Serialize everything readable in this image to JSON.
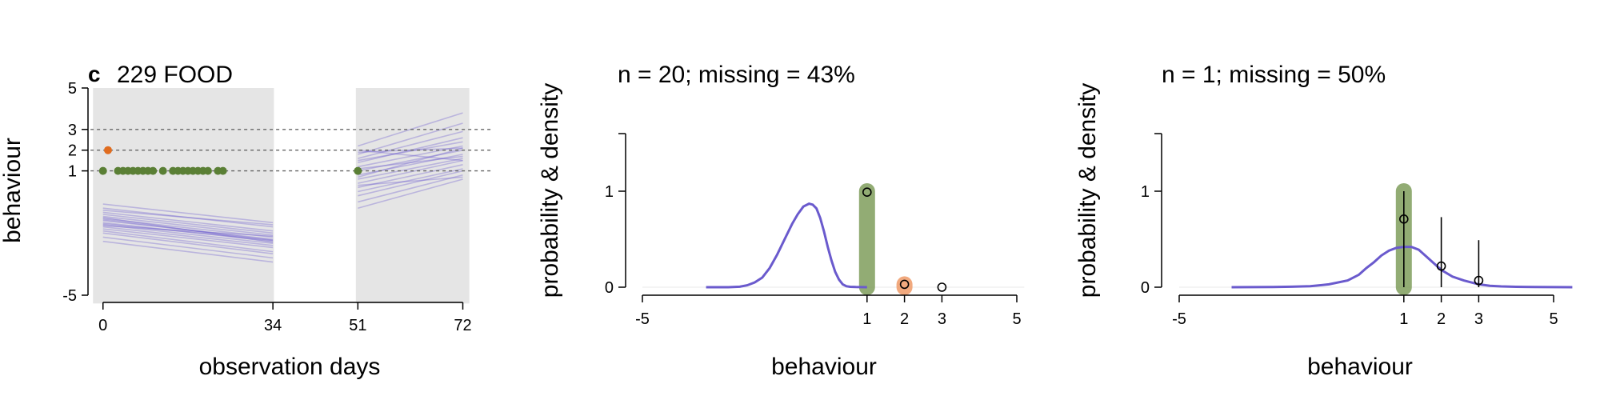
{
  "chart_data": [
    {
      "type": "line",
      "panel_letter": "c",
      "title": "229 FOOD",
      "xlabel": "observation days",
      "ylabel": "behaviour",
      "xlim": [
        -3,
        78
      ],
      "ylim": [
        -5,
        5
      ],
      "x_ticks": [
        0,
        34,
        51,
        72
      ],
      "y_ticks": [
        -5,
        1,
        2,
        3,
        5
      ],
      "reference_lines_y": [
        1,
        2,
        3
      ],
      "observed_periods": [
        [
          -2,
          34
        ],
        [
          51,
          72
        ]
      ],
      "observations": [
        {
          "day": 1,
          "value": 2,
          "color": "#e06c1f"
        },
        {
          "day": 0,
          "value": 1,
          "color": "#5a7f35"
        },
        {
          "day": 3,
          "value": 1,
          "color": "#5a7f35"
        },
        {
          "day": 4,
          "value": 1,
          "color": "#5a7f35"
        },
        {
          "day": 5,
          "value": 1,
          "color": "#5a7f35"
        },
        {
          "day": 6,
          "value": 1,
          "color": "#5a7f35"
        },
        {
          "day": 7,
          "value": 1,
          "color": "#5a7f35"
        },
        {
          "day": 8,
          "value": 1,
          "color": "#5a7f35"
        },
        {
          "day": 9,
          "value": 1,
          "color": "#5a7f35"
        },
        {
          "day": 10,
          "value": 1,
          "color": "#5a7f35"
        },
        {
          "day": 12,
          "value": 1,
          "color": "#5a7f35"
        },
        {
          "day": 14,
          "value": 1,
          "color": "#5a7f35"
        },
        {
          "day": 15,
          "value": 1,
          "color": "#5a7f35"
        },
        {
          "day": 16,
          "value": 1,
          "color": "#5a7f35"
        },
        {
          "day": 17,
          "value": 1,
          "color": "#5a7f35"
        },
        {
          "day": 18,
          "value": 1,
          "color": "#5a7f35"
        },
        {
          "day": 19,
          "value": 1,
          "color": "#5a7f35"
        },
        {
          "day": 20,
          "value": 1,
          "color": "#5a7f35"
        },
        {
          "day": 21,
          "value": 1,
          "color": "#5a7f35"
        },
        {
          "day": 23,
          "value": 1,
          "color": "#5a7f35"
        },
        {
          "day": 24,
          "value": 1,
          "color": "#5a7f35"
        },
        {
          "day": 51,
          "value": 1,
          "color": "#5a7f35"
        }
      ],
      "trajectory_color": "#6a5acd",
      "trajectories_period1": [
        [
          0,
          -0.6,
          34,
          -1.5
        ],
        [
          0,
          -0.8,
          34,
          -1.7
        ],
        [
          0,
          -1.0,
          34,
          -1.9
        ],
        [
          0,
          -1.1,
          34,
          -2.0
        ],
        [
          0,
          -1.2,
          34,
          -2.1
        ],
        [
          0,
          -1.3,
          34,
          -2.2
        ],
        [
          0,
          -1.4,
          34,
          -2.3
        ],
        [
          0,
          -1.5,
          34,
          -2.4
        ],
        [
          0,
          -1.6,
          34,
          -2.5
        ],
        [
          0,
          -1.7,
          34,
          -2.6
        ],
        [
          0,
          -1.8,
          34,
          -2.7
        ],
        [
          0,
          -1.9,
          34,
          -2.9
        ],
        [
          0,
          -2.0,
          34,
          -3.0
        ],
        [
          0,
          -2.2,
          34,
          -3.2
        ],
        [
          0,
          -2.4,
          34,
          -3.4
        ],
        [
          0,
          -0.9,
          34,
          -1.6
        ],
        [
          0,
          -1.35,
          34,
          -2.35
        ],
        [
          0,
          -1.55,
          34,
          -2.35
        ],
        [
          0,
          -1.25,
          34,
          -2.45
        ],
        [
          0,
          -1.65,
          34,
          -2.15
        ]
      ],
      "trajectories_period2": [
        [
          51,
          2.2,
          72,
          3.8
        ],
        [
          51,
          1.8,
          72,
          3.3
        ],
        [
          51,
          1.6,
          72,
          2.9
        ],
        [
          51,
          1.4,
          72,
          2.6
        ],
        [
          51,
          1.2,
          72,
          2.2
        ],
        [
          51,
          1.0,
          72,
          2.0
        ],
        [
          51,
          0.8,
          72,
          1.8
        ],
        [
          51,
          0.6,
          72,
          1.6
        ],
        [
          51,
          0.4,
          72,
          1.5
        ],
        [
          51,
          0.2,
          72,
          1.3
        ],
        [
          51,
          0.0,
          72,
          1.1
        ],
        [
          51,
          -0.2,
          72,
          1.0
        ],
        [
          51,
          -0.5,
          72,
          0.8
        ],
        [
          51,
          -0.8,
          72,
          0.6
        ],
        [
          51,
          1.5,
          72,
          2.4
        ],
        [
          51,
          1.1,
          72,
          1.7
        ],
        [
          51,
          0.7,
          72,
          2.1
        ],
        [
          51,
          1.9,
          72,
          2.1
        ],
        [
          51,
          0.3,
          72,
          0.7
        ],
        [
          51,
          2.0,
          72,
          1.5
        ]
      ]
    },
    {
      "type": "line",
      "title": "n = 20; missing = 43%",
      "xlabel": "behaviour",
      "ylabel": "probability & density",
      "xlim": [
        -5,
        5
      ],
      "ylim": [
        0,
        1.6
      ],
      "x_ticks": [
        -5,
        1,
        2,
        3,
        5
      ],
      "y_ticks": [
        0,
        1
      ],
      "density_color": "#6a5acd",
      "density_curve": {
        "x": [
          -3.3,
          -2.7,
          -2.4,
          -2.2,
          -2.0,
          -1.8,
          -1.6,
          -1.4,
          -1.2,
          -1.0,
          -0.85,
          -0.7,
          -0.55,
          -0.45,
          -0.35,
          -0.25,
          -0.15,
          -0.05,
          0.05,
          0.15,
          0.25,
          0.35,
          0.45,
          0.55,
          0.7,
          0.85,
          1.0
        ],
        "y": [
          0,
          0,
          0.005,
          0.02,
          0.05,
          0.1,
          0.2,
          0.34,
          0.5,
          0.66,
          0.76,
          0.84,
          0.87,
          0.86,
          0.82,
          0.72,
          0.58,
          0.42,
          0.28,
          0.16,
          0.08,
          0.03,
          0.01,
          0.004,
          0.002,
          0.001,
          0
        ]
      },
      "category_probabilities": [
        {
          "category": 1,
          "probability": 0.99,
          "band_color": "#7f9e5c",
          "band_opacity": 0.85
        },
        {
          "category": 2,
          "probability": 0.03,
          "band_color": "#f0a070",
          "band_opacity": 0.9
        },
        {
          "category": 3,
          "probability": 0.0,
          "band_color": "",
          "band_opacity": 0
        }
      ],
      "error_bars": []
    },
    {
      "type": "line",
      "title": "n = 1; missing = 50%",
      "xlabel": "behaviour",
      "ylabel": "probability & density",
      "xlim": [
        -5,
        5
      ],
      "ylim": [
        0,
        1.6
      ],
      "x_ticks": [
        -5,
        1,
        2,
        3,
        5
      ],
      "y_ticks": [
        0,
        1
      ],
      "density_color": "#6a5acd",
      "density_curve": {
        "x": [
          -3.6,
          -2.5,
          -2.0,
          -1.5,
          -1.0,
          -0.5,
          -0.2,
          0.0,
          0.2,
          0.4,
          0.6,
          0.8,
          1.0,
          1.2,
          1.4,
          1.6,
          1.8,
          2.0,
          2.3,
          2.6,
          3.0,
          3.3,
          3.6,
          4.0,
          4.5,
          5.0,
          5.5
        ],
        "y": [
          0,
          0.002,
          0.005,
          0.01,
          0.03,
          0.07,
          0.13,
          0.2,
          0.26,
          0.33,
          0.38,
          0.41,
          0.42,
          0.42,
          0.39,
          0.32,
          0.25,
          0.18,
          0.11,
          0.07,
          0.03,
          0.015,
          0.008,
          0.004,
          0.002,
          0.001,
          0
        ]
      },
      "category_probabilities": [
        {
          "category": 1,
          "probability": 0.71,
          "band_color": "#7f9e5c",
          "band_opacity": 0.85
        },
        {
          "category": 2,
          "probability": 0.22,
          "band_color": "",
          "band_opacity": 0
        },
        {
          "category": 3,
          "probability": 0.07,
          "band_color": "",
          "band_opacity": 0
        }
      ],
      "error_bars": [
        {
          "category": 1,
          "low": 0.0,
          "high": 1.0
        },
        {
          "category": 2,
          "low": 0.0,
          "high": 0.73
        },
        {
          "category": 3,
          "low": 0.0,
          "high": 0.49
        }
      ]
    }
  ]
}
